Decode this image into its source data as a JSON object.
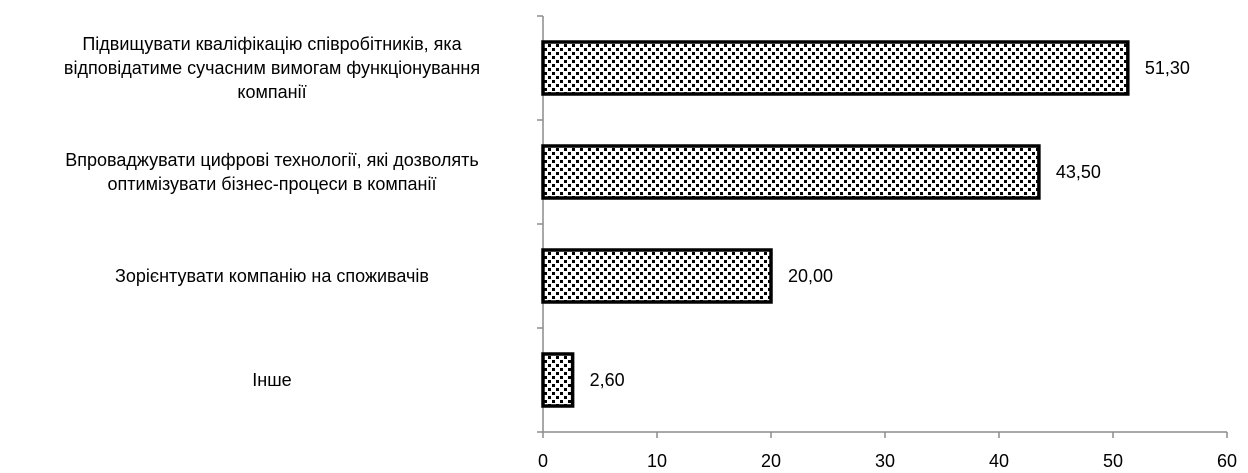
{
  "chart_data": {
    "type": "bar",
    "orientation": "horizontal",
    "categories": [
      "Підвищувати кваліфікацію співробітників, яка відповідатиме сучасним вимогам функціонування компанії",
      "Впроваджувати цифрові технології, які дозволять оптимізувати бізнес-процеси в компанії",
      "Зорієнтувати компанію на споживачів",
      "Інше"
    ],
    "category_lines": [
      [
        "Підвищувати кваліфікацію співробітників, яка",
        "відповідатиме сучасним вимогам функціонування",
        "компанії"
      ],
      [
        "Впроваджувати цифрові технології, які дозволять",
        "оптимізувати бізнес-процеси в компанії"
      ],
      [
        "Зорієнтувати компанію на споживачів"
      ],
      [
        "Інше"
      ]
    ],
    "values": [
      51.3,
      43.5,
      20.0,
      2.6
    ],
    "data_labels": [
      "51,30",
      "43,50",
      "20,00",
      "2,60"
    ],
    "xlim": [
      0,
      60
    ],
    "x_ticks": [
      0,
      10,
      20,
      30,
      40,
      50,
      60
    ],
    "x_tick_labels": [
      "0",
      "10",
      "20",
      "30",
      "40",
      "50",
      "60"
    ],
    "title": "",
    "xlabel": "",
    "ylabel": "",
    "grid": false,
    "legend": "none",
    "bar_fill": "checkered",
    "colors": {
      "bar_stroke": "#000000",
      "pattern_dark": "#000000",
      "pattern_light": "#ffffff",
      "axis": "#8c8c8c",
      "text": "#000000"
    }
  }
}
